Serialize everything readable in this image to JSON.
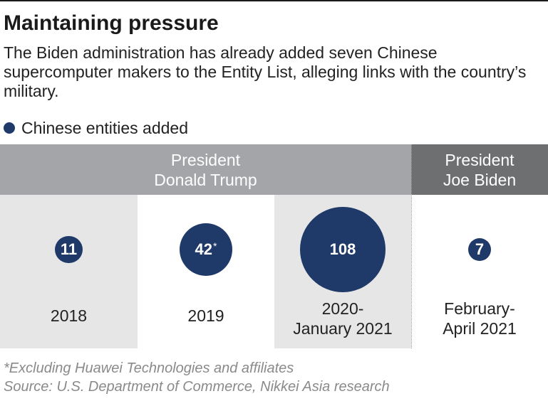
{
  "title": "Maintaining pressure",
  "subtitle": "The Biden administration has already added seven Chinese supercomputer makers to the Entity List, alleging links with the country’s military.",
  "legend": {
    "label": "Chinese entities added",
    "color": "#1f3a68"
  },
  "presidencies": [
    {
      "label": "President\nDonald Trump",
      "color": "#a3a5a8"
    },
    {
      "label": "President\nJoe Biden",
      "color": "#6e6f71"
    }
  ],
  "chart_data": {
    "type": "bubble",
    "periods": [
      "2018",
      "2019",
      "2020-\nJanuary 2021",
      "February-\nApril 2021"
    ],
    "values": [
      11,
      42,
      108,
      7
    ],
    "value_labels": [
      "11",
      "42",
      "108",
      "7"
    ],
    "value_marks": [
      "",
      "*",
      "",
      ""
    ],
    "presidency_of_period": [
      "President Donald Trump",
      "President Donald Trump",
      "President Donald Trump",
      "President Joe Biden"
    ],
    "column_backgrounds": [
      "#e6e6e7",
      "#ffffff",
      "#e6e6e7",
      "#ffffff"
    ],
    "bubble_color": "#1f3a68"
  },
  "footnote": "*Excluding Huawei Technologies and affiliates",
  "source": "Source: U.S. Department of Commerce, Nikkei Asia research"
}
